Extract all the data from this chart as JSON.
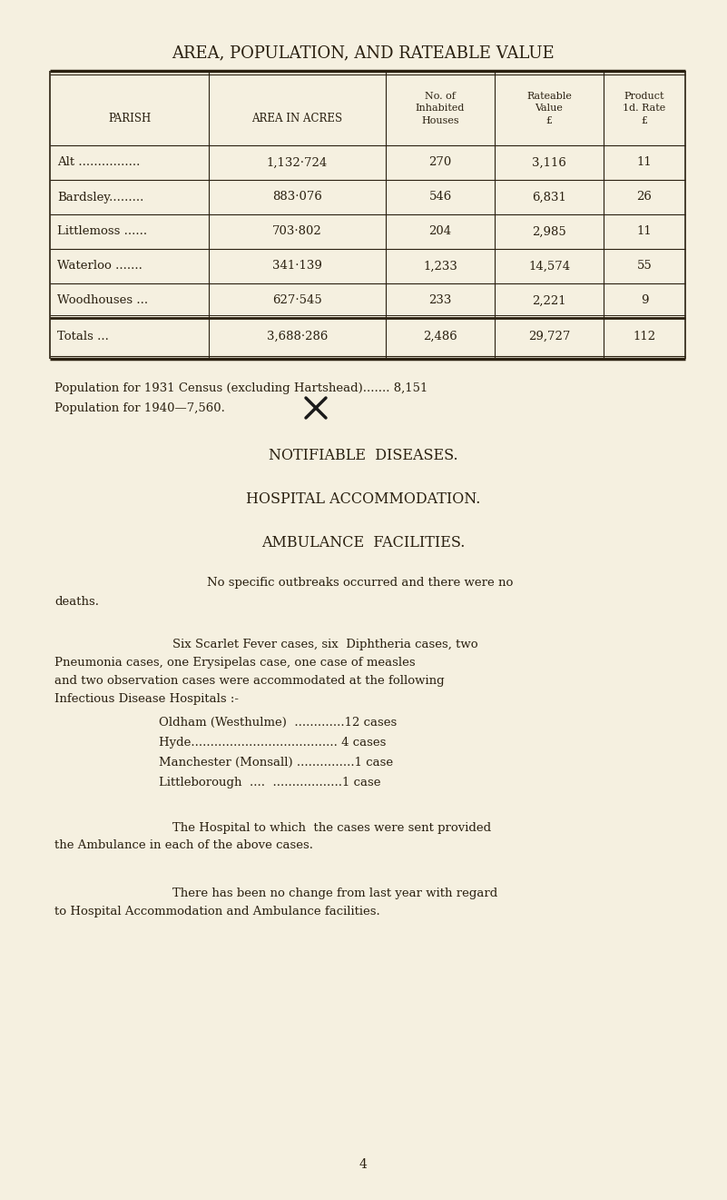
{
  "bg_color": "#f5f0e0",
  "title": "AREA, POPULATION, AND RATEABLE VALUE",
  "title_fontsize": 13,
  "table_headers": [
    "PARISH",
    "AREA IN ACRES",
    "No. of\nInhabited\nHouses",
    "Rateable\nValue\n£",
    "Product\n1d. Rate\n£"
  ],
  "table_rows": [
    [
      "Alt ................",
      "1,132·724",
      "270",
      "3,116",
      "11"
    ],
    [
      "Bardsley.........",
      "883·076",
      "546",
      "6,831",
      "26"
    ],
    [
      "Littlemoss ......",
      "703·802",
      "204",
      "2,985",
      "11"
    ],
    [
      "Waterloo .......",
      "341·139",
      "1,233",
      "14,574",
      "55"
    ],
    [
      "Woodhouses ...",
      "627·545",
      "233",
      "2,221",
      "9"
    ]
  ],
  "totals_row": [
    "Totals ...",
    "3,688·286",
    "2,486",
    "29,727",
    "112"
  ],
  "pop_line1": "Population for 1931 Census (excluding Hartshead)....... 8,151",
  "pop_line2": "Population for 1940—7,560.",
  "section1": "NOTIFIABLE  DISEASES.",
  "section2": "HOSPITAL ACCOMMODATION.",
  "section3": "AMBULANCE  FACILITIES.",
  "para1_line1": "No specific outbreaks occurred and there were no",
  "para1_line2": "deaths.",
  "para2_line1": "Six Scarlet Fever cases, six  Diphtheria cases, two",
  "para2_line2": "Pneumonia cases, one Erysipelas case, one case of measles",
  "para2_line3": "and two observation cases were accommodated at the following",
  "para2_line4": "Infectious Disease Hospitals :-",
  "hospitals": [
    "Oldham (Westhulme)  .............12 cases",
    "Hyde...................................... 4 cases",
    "Manchester (Monsall) ...............1 case",
    "Littleborough  ....  ..................1 case"
  ],
  "para3_line1": "The Hospital to which  the cases were sent provided",
  "para3_line2": "the Ambulance in each of the above cases.",
  "para4_line1": "There has been no change from last year with regard",
  "para4_line2": "to Hospital Accommodation and Ambulance facilities.",
  "page_num": "4",
  "text_color": "#2a2010",
  "font_family": "serif"
}
